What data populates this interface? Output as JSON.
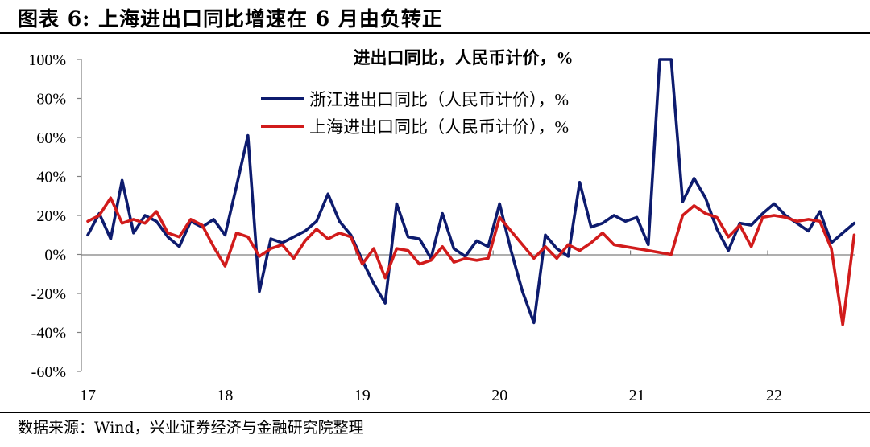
{
  "figure_title": "图表 6: 上海进出口同比增速在 6 月由负转正",
  "source": "数据来源：Wind，兴业证券经济与金融研究院整理",
  "chart_data": {
    "type": "line",
    "title": "进出口同比，人民币计价，%",
    "xlabel": "",
    "ylabel": "",
    "ylim": [
      -60,
      100
    ],
    "y_ticks": [
      -60,
      -40,
      -20,
      0,
      20,
      40,
      60,
      80,
      100
    ],
    "y_tick_labels": [
      "-60%",
      "-40%",
      "-20%",
      "0%",
      "20%",
      "40%",
      "60%",
      "80%",
      "100%"
    ],
    "x_tick_labels": [
      "17",
      "18",
      "19",
      "20",
      "21",
      "22"
    ],
    "x_start": "2017-01",
    "grid": false,
    "legend_position": "top-center",
    "series": [
      {
        "name": "浙江进出口同比（人民币计价），%",
        "color": "#0d1b6e",
        "values": [
          10,
          21,
          8,
          38,
          11,
          20,
          17,
          9,
          4,
          17,
          14,
          18,
          10,
          35,
          61,
          -19,
          8,
          6,
          9,
          12,
          17,
          31,
          17,
          10,
          -3,
          -15,
          -25,
          26,
          9,
          8,
          -2,
          21,
          3,
          -1,
          7,
          4,
          26,
          2,
          -19,
          -35,
          10,
          3,
          -1,
          37,
          14,
          16,
          20,
          17,
          19,
          5,
          100,
          100,
          27,
          39,
          29,
          13,
          2,
          16,
          15,
          21,
          26,
          20,
          16,
          12,
          22,
          6,
          11,
          16
        ]
      },
      {
        "name": "上海进出口同比（人民币计价），%",
        "color": "#d11b1b",
        "values": [
          17,
          20,
          29,
          16,
          18,
          16,
          22,
          11,
          9,
          18,
          15,
          4,
          -6,
          11,
          9,
          -1,
          3,
          5,
          -2,
          7,
          13,
          8,
          11,
          9,
          -5,
          3,
          -12,
          3,
          2,
          -5,
          -3,
          4,
          -4,
          -2,
          -3,
          -2,
          19,
          12,
          5,
          -2,
          4,
          -2,
          5,
          2,
          6,
          11,
          5,
          4,
          3,
          2,
          1,
          0,
          20,
          25,
          21,
          19,
          9,
          15,
          4,
          19,
          20,
          19,
          17,
          18,
          17,
          3,
          -36,
          10
        ]
      }
    ]
  }
}
